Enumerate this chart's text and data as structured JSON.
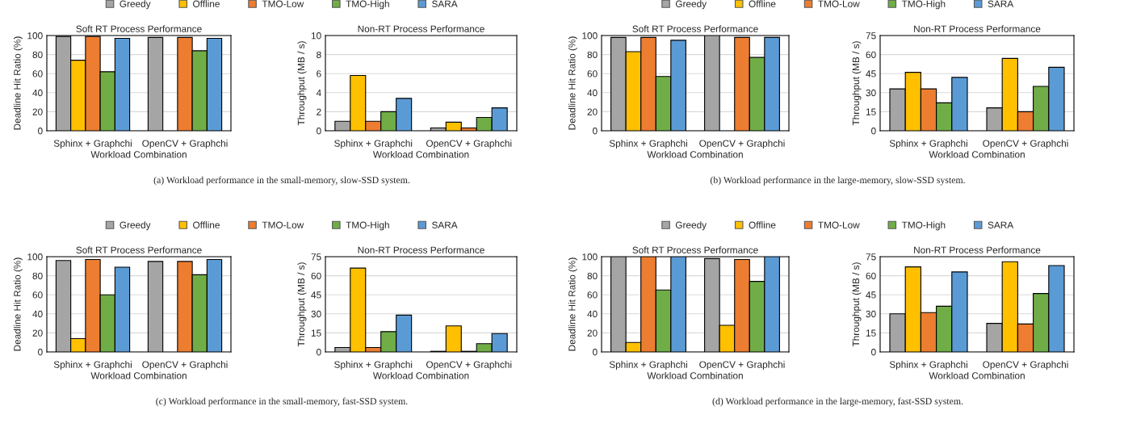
{
  "chart_data": [
    {
      "type": "bar",
      "title": "Soft RT Process Performance",
      "xlabel": "Workload Combination",
      "ylabel": "Deadline Hit Ratio (%)",
      "categories": [
        "Sphinx + Graphchi",
        "OpenCV + Graphchi"
      ],
      "ylim": [
        0,
        100
      ],
      "yticks": [
        0,
        20,
        40,
        60,
        80,
        100
      ],
      "grid": "y",
      "legend": "top",
      "annotations": [
        "(a) Workload performance in the small-memory, slow-SSD system."
      ],
      "series": [
        {
          "name": "Greedy",
          "color": "#a5a5a5",
          "values": [
            99,
            98
          ]
        },
        {
          "name": "Offline",
          "color": "#ffc000",
          "values": [
            74,
            null
          ]
        },
        {
          "name": "TMO-Low",
          "color": "#ed7d31",
          "values": [
            99,
            98
          ]
        },
        {
          "name": "TMO-High",
          "color": "#70ad47",
          "values": [
            62,
            84
          ]
        },
        {
          "name": "SARA",
          "color": "#5b9bd5",
          "values": [
            97,
            97
          ]
        }
      ]
    },
    {
      "type": "bar",
      "title": "Non-RT Process Performance",
      "xlabel": "Workload Combination",
      "ylabel": "Throughput (MB / s)",
      "categories": [
        "Sphinx + Graphchi",
        "OpenCV + Graphchi"
      ],
      "ylim": [
        0,
        10
      ],
      "yticks": [
        0,
        2,
        4,
        6,
        8,
        10
      ],
      "grid": "y",
      "series": [
        {
          "color": "#a5a5a5",
          "values": [
            1.0,
            0.3
          ]
        },
        {
          "color": "#ffc000",
          "values": [
            5.8,
            0.9
          ]
        },
        {
          "color": "#ed7d31",
          "values": [
            1.0,
            0.3
          ]
        },
        {
          "color": "#70ad47",
          "values": [
            2.0,
            1.4
          ]
        },
        {
          "color": "#5b9bd5",
          "values": [
            3.4,
            2.4
          ]
        }
      ]
    },
    {
      "type": "bar",
      "title": "Soft RT Process Performance",
      "xlabel": "Workload Combination",
      "ylabel": "Deadline Hit Ratio (%)",
      "categories": [
        "Sphinx + Graphchi",
        "OpenCV + Graphchi"
      ],
      "ylim": [
        0,
        100
      ],
      "yticks": [
        0,
        20,
        40,
        60,
        80,
        100
      ],
      "grid": "y",
      "legend": "top",
      "annotations": [
        "(b) Workload performance in the large-memory, slow-SSD system."
      ],
      "series": [
        {
          "name": "Greedy",
          "color": "#a5a5a5",
          "values": [
            98,
            100
          ]
        },
        {
          "name": "Offline",
          "color": "#ffc000",
          "values": [
            83,
            null
          ]
        },
        {
          "name": "TMO-Low",
          "color": "#ed7d31",
          "values": [
            98,
            98
          ]
        },
        {
          "name": "TMO-High",
          "color": "#70ad47",
          "values": [
            57,
            77
          ]
        },
        {
          "name": "SARA",
          "color": "#5b9bd5",
          "values": [
            95,
            98
          ]
        }
      ]
    },
    {
      "type": "bar",
      "title": "Non-RT Process Performance",
      "xlabel": "Workload Combination",
      "ylabel": "Throughput (MB / s)",
      "categories": [
        "Sphinx + Graphchi",
        "OpenCV + Graphchi"
      ],
      "ylim": [
        0,
        75
      ],
      "yticks": [
        0,
        15,
        30,
        45,
        60,
        75
      ],
      "grid": "y",
      "series": [
        {
          "color": "#a5a5a5",
          "values": [
            33,
            18
          ]
        },
        {
          "color": "#ffc000",
          "values": [
            46,
            57
          ]
        },
        {
          "color": "#ed7d31",
          "values": [
            33,
            15
          ]
        },
        {
          "color": "#70ad47",
          "values": [
            22,
            35
          ]
        },
        {
          "color": "#5b9bd5",
          "values": [
            42,
            50
          ]
        }
      ]
    },
    {
      "type": "bar",
      "title": "Soft RT Process Performance",
      "xlabel": "Workload Combination",
      "ylabel": "Deadline Hit Ratio (%)",
      "categories": [
        "Sphinx + Graphchi",
        "OpenCV + Graphchi"
      ],
      "ylim": [
        0,
        100
      ],
      "yticks": [
        0,
        20,
        40,
        60,
        80,
        100
      ],
      "grid": "y",
      "legend": "top",
      "annotations": [
        "(c) Workload performance in the small-memory, fast-SSD system."
      ],
      "series": [
        {
          "name": "Greedy",
          "color": "#a5a5a5",
          "values": [
            96,
            95
          ]
        },
        {
          "name": "Offline",
          "color": "#ffc000",
          "values": [
            14,
            null
          ]
        },
        {
          "name": "TMO-Low",
          "color": "#ed7d31",
          "values": [
            97,
            95
          ]
        },
        {
          "name": "TMO-High",
          "color": "#70ad47",
          "values": [
            60,
            81
          ]
        },
        {
          "name": "SARA",
          "color": "#5b9bd5",
          "values": [
            89,
            97
          ]
        }
      ]
    },
    {
      "type": "bar",
      "title": "Non-RT Process Performance",
      "xlabel": "Workload Combination",
      "ylabel": "Throughput (MB / s)",
      "categories": [
        "Sphinx + Graphchi",
        "OpenCV + Graphchi"
      ],
      "ylim": [
        0,
        75
      ],
      "yticks": [
        0,
        15,
        30,
        45,
        60,
        75
      ],
      "grid": "y",
      "series": [
        {
          "color": "#a5a5a5",
          "values": [
            3.5,
            0.5
          ]
        },
        {
          "color": "#ffc000",
          "values": [
            66,
            20.5
          ]
        },
        {
          "color": "#ed7d31",
          "values": [
            3.5,
            0.5
          ]
        },
        {
          "color": "#70ad47",
          "values": [
            16,
            6.5
          ]
        },
        {
          "color": "#5b9bd5",
          "values": [
            29,
            14.5
          ]
        }
      ]
    },
    {
      "type": "bar",
      "title": "Soft RT Process Performance",
      "xlabel": "Workload Combination",
      "ylabel": "Deadline Hit Ratio (%)",
      "categories": [
        "Sphinx + Graphchi",
        "OpenCV + Graphchi"
      ],
      "ylim": [
        0,
        100
      ],
      "yticks": [
        0,
        20,
        40,
        60,
        80,
        100
      ],
      "grid": "y",
      "legend": "top",
      "annotations": [
        "(d) Workload performance in the large-memory, fast-SSD system."
      ],
      "series": [
        {
          "name": "Greedy",
          "color": "#a5a5a5",
          "values": [
            100,
            98
          ]
        },
        {
          "name": "Offline",
          "color": "#ffc000",
          "values": [
            10,
            28
          ]
        },
        {
          "name": "TMO-Low",
          "color": "#ed7d31",
          "values": [
            100,
            97
          ]
        },
        {
          "name": "TMO-High",
          "color": "#70ad47",
          "values": [
            65,
            74
          ]
        },
        {
          "name": "SARA",
          "color": "#5b9bd5",
          "values": [
            100,
            100
          ]
        }
      ]
    },
    {
      "type": "bar",
      "title": "Non-RT Process Performance",
      "xlabel": "Workload Combination",
      "ylabel": "Throughput (MB / s)",
      "categories": [
        "Sphinx + Graphchi",
        "OpenCV + Graphchi"
      ],
      "ylim": [
        0,
        75
      ],
      "yticks": [
        0,
        15,
        30,
        45,
        60,
        75
      ],
      "grid": "y",
      "series": [
        {
          "color": "#a5a5a5",
          "values": [
            30,
            22.5
          ]
        },
        {
          "color": "#ffc000",
          "values": [
            67,
            71
          ]
        },
        {
          "color": "#ed7d31",
          "values": [
            31,
            22
          ]
        },
        {
          "color": "#70ad47",
          "values": [
            36,
            46
          ]
        },
        {
          "color": "#5b9bd5",
          "values": [
            63,
            68
          ]
        }
      ]
    }
  ]
}
